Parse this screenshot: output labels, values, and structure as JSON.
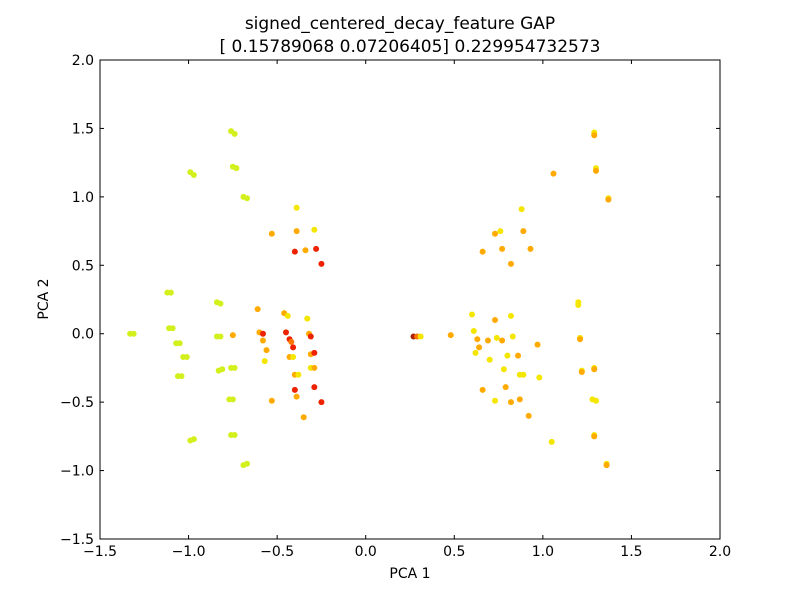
{
  "chart_data": {
    "type": "scatter",
    "title": "signed_centered_decay_feature GAP",
    "subtitle": "[ 0.15789068  0.07206405] 0.229954732573",
    "xlabel": "PCA 1",
    "ylabel": "PCA 2",
    "xlim": [
      -1.5,
      2.0
    ],
    "ylim": [
      -1.5,
      2.0
    ],
    "x_ticks": [
      "−1.5",
      "−1.0",
      "−0.5",
      "0.0",
      "0.5",
      "1.0",
      "1.5",
      "2.0"
    ],
    "y_ticks": [
      "−1.5",
      "−1.0",
      "−0.5",
      "0.0",
      "0.5",
      "1.0",
      "1.5",
      "2.0"
    ],
    "x_tick_values": [
      -1.5,
      -1.0,
      -0.5,
      0.0,
      0.5,
      1.0,
      1.5,
      2.0
    ],
    "y_tick_values": [
      -1.5,
      -1.0,
      -0.5,
      0.0,
      0.5,
      1.0,
      1.5,
      2.0
    ],
    "grid": false,
    "legend": "none",
    "colors": {
      "yellow_green": "#d4f01c",
      "yellow": "#f5e600",
      "orange": "#ffaa00",
      "dark_orange": "#ff7700",
      "red": "#ee2200",
      "dark_red": "#aa2200"
    },
    "points": [
      {
        "x": -1.33,
        "y": 0.0,
        "c": "yellow_green"
      },
      {
        "x": -1.31,
        "y": 0.0,
        "c": "yellow_green"
      },
      {
        "x": -1.12,
        "y": 0.3,
        "c": "yellow_green"
      },
      {
        "x": -1.1,
        "y": 0.3,
        "c": "yellow_green"
      },
      {
        "x": -1.11,
        "y": 0.04,
        "c": "yellow_green"
      },
      {
        "x": -1.09,
        "y": 0.04,
        "c": "yellow_green"
      },
      {
        "x": -1.07,
        "y": -0.07,
        "c": "yellow_green"
      },
      {
        "x": -1.05,
        "y": -0.07,
        "c": "yellow_green"
      },
      {
        "x": -1.03,
        "y": -0.17,
        "c": "yellow_green"
      },
      {
        "x": -1.01,
        "y": -0.17,
        "c": "yellow_green"
      },
      {
        "x": -1.06,
        "y": -0.31,
        "c": "yellow_green"
      },
      {
        "x": -1.04,
        "y": -0.31,
        "c": "yellow_green"
      },
      {
        "x": -0.99,
        "y": 1.18,
        "c": "yellow_green"
      },
      {
        "x": -0.97,
        "y": 1.16,
        "c": "yellow_green"
      },
      {
        "x": -0.99,
        "y": -0.78,
        "c": "yellow_green"
      },
      {
        "x": -0.97,
        "y": -0.77,
        "c": "yellow_green"
      },
      {
        "x": -0.84,
        "y": 0.23,
        "c": "yellow_green"
      },
      {
        "x": -0.82,
        "y": 0.22,
        "c": "yellow_green"
      },
      {
        "x": -0.84,
        "y": -0.02,
        "c": "yellow_green"
      },
      {
        "x": -0.82,
        "y": -0.02,
        "c": "yellow_green"
      },
      {
        "x": -0.83,
        "y": -0.27,
        "c": "yellow_green"
      },
      {
        "x": -0.81,
        "y": -0.26,
        "c": "yellow_green"
      },
      {
        "x": -0.77,
        "y": -0.48,
        "c": "yellow_green"
      },
      {
        "x": -0.75,
        "y": -0.48,
        "c": "yellow_green"
      },
      {
        "x": -0.76,
        "y": -0.25,
        "c": "yellow_green"
      },
      {
        "x": -0.74,
        "y": -0.25,
        "c": "yellow_green"
      },
      {
        "x": -0.76,
        "y": -0.74,
        "c": "yellow_green"
      },
      {
        "x": -0.74,
        "y": -0.74,
        "c": "yellow_green"
      },
      {
        "x": -0.76,
        "y": 1.48,
        "c": "yellow_green"
      },
      {
        "x": -0.74,
        "y": 1.46,
        "c": "yellow_green"
      },
      {
        "x": -0.75,
        "y": 1.22,
        "c": "yellow_green"
      },
      {
        "x": -0.73,
        "y": 1.21,
        "c": "yellow_green"
      },
      {
        "x": -0.69,
        "y": 1.0,
        "c": "yellow_green"
      },
      {
        "x": -0.67,
        "y": 0.99,
        "c": "yellow_green"
      },
      {
        "x": -0.69,
        "y": -0.96,
        "c": "yellow_green"
      },
      {
        "x": -0.67,
        "y": -0.95,
        "c": "yellow_green"
      },
      {
        "x": -0.75,
        "y": -0.01,
        "c": "orange"
      },
      {
        "x": -0.61,
        "y": 0.18,
        "c": "orange"
      },
      {
        "x": -0.6,
        "y": 0.01,
        "c": "orange"
      },
      {
        "x": -0.58,
        "y": -0.05,
        "c": "orange"
      },
      {
        "x": -0.58,
        "y": 0.0,
        "c": "red"
      },
      {
        "x": -0.56,
        "y": -0.12,
        "c": "orange"
      },
      {
        "x": -0.57,
        "y": -0.2,
        "c": "yellow"
      },
      {
        "x": -0.53,
        "y": 0.73,
        "c": "orange"
      },
      {
        "x": -0.53,
        "y": -0.49,
        "c": "orange"
      },
      {
        "x": -0.46,
        "y": 0.15,
        "c": "orange"
      },
      {
        "x": -0.44,
        "y": 0.13,
        "c": "yellow"
      },
      {
        "x": -0.45,
        "y": 0.01,
        "c": "red"
      },
      {
        "x": -0.43,
        "y": -0.04,
        "c": "red"
      },
      {
        "x": -0.42,
        "y": -0.06,
        "c": "dark_orange"
      },
      {
        "x": -0.41,
        "y": -0.1,
        "c": "red"
      },
      {
        "x": -0.43,
        "y": -0.17,
        "c": "orange"
      },
      {
        "x": -0.41,
        "y": -0.17,
        "c": "yellow"
      },
      {
        "x": -0.4,
        "y": -0.3,
        "c": "orange"
      },
      {
        "x": -0.38,
        "y": -0.3,
        "c": "yellow"
      },
      {
        "x": -0.4,
        "y": -0.41,
        "c": "red"
      },
      {
        "x": -0.39,
        "y": -0.46,
        "c": "orange"
      },
      {
        "x": -0.4,
        "y": 0.6,
        "c": "red"
      },
      {
        "x": -0.39,
        "y": 0.92,
        "c": "yellow"
      },
      {
        "x": -0.39,
        "y": 0.75,
        "c": "orange"
      },
      {
        "x": -0.35,
        "y": -0.61,
        "c": "orange"
      },
      {
        "x": -0.34,
        "y": 0.61,
        "c": "orange"
      },
      {
        "x": -0.33,
        "y": 0.11,
        "c": "yellow"
      },
      {
        "x": -0.32,
        "y": 0.0,
        "c": "orange"
      },
      {
        "x": -0.31,
        "y": -0.02,
        "c": "red"
      },
      {
        "x": -0.31,
        "y": -0.15,
        "c": "orange"
      },
      {
        "x": -0.29,
        "y": -0.14,
        "c": "red"
      },
      {
        "x": -0.31,
        "y": -0.25,
        "c": "yellow"
      },
      {
        "x": -0.29,
        "y": -0.25,
        "c": "orange"
      },
      {
        "x": -0.29,
        "y": -0.39,
        "c": "red"
      },
      {
        "x": -0.29,
        "y": 0.76,
        "c": "yellow"
      },
      {
        "x": -0.28,
        "y": 0.62,
        "c": "red"
      },
      {
        "x": -0.25,
        "y": 0.51,
        "c": "red"
      },
      {
        "x": -0.25,
        "y": -0.5,
        "c": "red"
      },
      {
        "x": 0.27,
        "y": -0.02,
        "c": "dark_red"
      },
      {
        "x": 0.29,
        "y": -0.02,
        "c": "dark_orange"
      },
      {
        "x": 0.31,
        "y": -0.02,
        "c": "yellow"
      },
      {
        "x": 0.48,
        "y": -0.01,
        "c": "orange"
      },
      {
        "x": 0.6,
        "y": 0.14,
        "c": "yellow"
      },
      {
        "x": 0.61,
        "y": 0.02,
        "c": "yellow"
      },
      {
        "x": 0.63,
        "y": -0.04,
        "c": "orange"
      },
      {
        "x": 0.64,
        "y": -0.1,
        "c": "orange"
      },
      {
        "x": 0.62,
        "y": -0.14,
        "c": "yellow"
      },
      {
        "x": 0.66,
        "y": 0.6,
        "c": "orange"
      },
      {
        "x": 0.66,
        "y": -0.41,
        "c": "orange"
      },
      {
        "x": 0.69,
        "y": -0.05,
        "c": "orange"
      },
      {
        "x": 0.7,
        "y": -0.19,
        "c": "yellow"
      },
      {
        "x": 0.73,
        "y": 0.73,
        "c": "orange"
      },
      {
        "x": 0.73,
        "y": 0.1,
        "c": "orange"
      },
      {
        "x": 0.74,
        "y": -0.03,
        "c": "yellow"
      },
      {
        "x": 0.73,
        "y": -0.49,
        "c": "yellow"
      },
      {
        "x": 0.76,
        "y": 0.75,
        "c": "yellow"
      },
      {
        "x": 0.77,
        "y": 0.62,
        "c": "orange"
      },
      {
        "x": 0.77,
        "y": -0.05,
        "c": "orange"
      },
      {
        "x": 0.78,
        "y": -0.26,
        "c": "yellow"
      },
      {
        "x": 0.79,
        "y": -0.39,
        "c": "orange"
      },
      {
        "x": 0.8,
        "y": -0.16,
        "c": "yellow"
      },
      {
        "x": 0.82,
        "y": 0.51,
        "c": "orange"
      },
      {
        "x": 0.82,
        "y": 0.13,
        "c": "yellow"
      },
      {
        "x": 0.83,
        "y": -0.02,
        "c": "yellow"
      },
      {
        "x": 0.82,
        "y": -0.5,
        "c": "orange"
      },
      {
        "x": 0.86,
        "y": -0.16,
        "c": "orange"
      },
      {
        "x": 0.88,
        "y": 0.91,
        "c": "yellow"
      },
      {
        "x": 0.89,
        "y": 0.75,
        "c": "orange"
      },
      {
        "x": 0.87,
        "y": -0.3,
        "c": "yellow"
      },
      {
        "x": 0.89,
        "y": -0.3,
        "c": "yellow"
      },
      {
        "x": 0.87,
        "y": -0.48,
        "c": "orange"
      },
      {
        "x": 0.93,
        "y": 0.62,
        "c": "orange"
      },
      {
        "x": 0.92,
        "y": -0.6,
        "c": "orange"
      },
      {
        "x": 0.97,
        "y": -0.08,
        "c": "orange"
      },
      {
        "x": 0.98,
        "y": -0.32,
        "c": "yellow"
      },
      {
        "x": 1.05,
        "y": -0.79,
        "c": "yellow"
      },
      {
        "x": 1.06,
        "y": 1.17,
        "c": "orange"
      },
      {
        "x": 1.2,
        "y": 0.23,
        "c": "yellow"
      },
      {
        "x": 1.2,
        "y": 0.21,
        "c": "yellow"
      },
      {
        "x": 1.21,
        "y": -0.03,
        "c": "yellow"
      },
      {
        "x": 1.21,
        "y": -0.04,
        "c": "orange"
      },
      {
        "x": 1.22,
        "y": -0.27,
        "c": "yellow"
      },
      {
        "x": 1.22,
        "y": -0.28,
        "c": "orange"
      },
      {
        "x": 1.29,
        "y": 1.47,
        "c": "yellow"
      },
      {
        "x": 1.29,
        "y": 1.45,
        "c": "orange"
      },
      {
        "x": 1.3,
        "y": 1.21,
        "c": "yellow"
      },
      {
        "x": 1.3,
        "y": 1.19,
        "c": "orange"
      },
      {
        "x": 1.29,
        "y": -0.25,
        "c": "yellow"
      },
      {
        "x": 1.29,
        "y": -0.26,
        "c": "orange"
      },
      {
        "x": 1.28,
        "y": -0.48,
        "c": "yellow"
      },
      {
        "x": 1.3,
        "y": -0.49,
        "c": "yellow"
      },
      {
        "x": 1.29,
        "y": -0.74,
        "c": "yellow"
      },
      {
        "x": 1.29,
        "y": -0.75,
        "c": "orange"
      },
      {
        "x": 1.37,
        "y": 0.99,
        "c": "yellow"
      },
      {
        "x": 1.37,
        "y": 0.98,
        "c": "orange"
      },
      {
        "x": 1.36,
        "y": -0.95,
        "c": "yellow"
      },
      {
        "x": 1.36,
        "y": -0.96,
        "c": "orange"
      }
    ]
  }
}
